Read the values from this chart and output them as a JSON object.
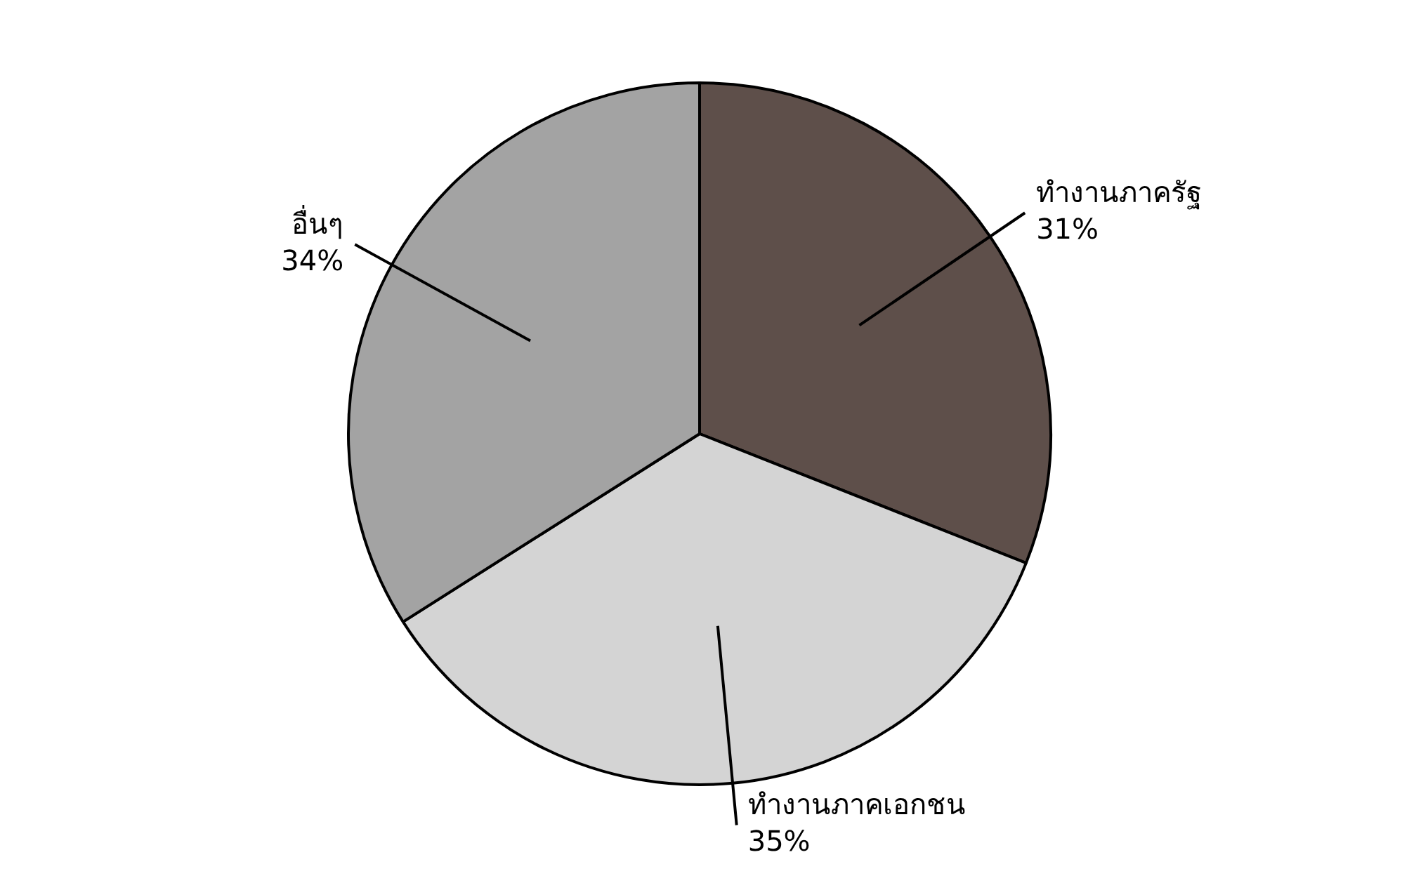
{
  "chart_data": {
    "type": "pie",
    "categories": [
      "ทำงานภาครัฐ",
      "ทำงานภาคเอกชน",
      "อื่นๆ"
    ],
    "values": [
      31,
      35,
      34
    ],
    "colors": [
      "#5e4f4a",
      "#d4d4d4",
      "#a3a3a3"
    ],
    "value_labels": [
      "31%",
      "35%",
      "34%"
    ],
    "legend": false
  }
}
